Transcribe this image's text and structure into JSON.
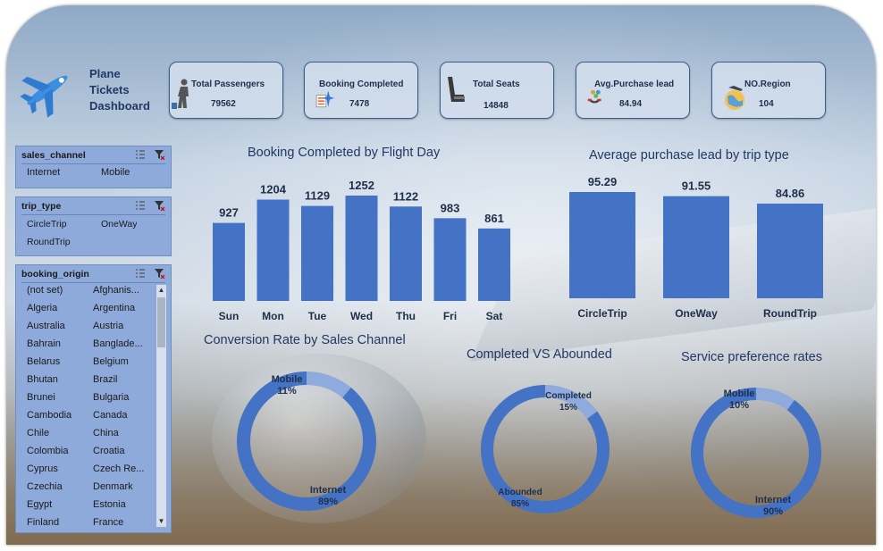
{
  "app": {
    "title_lines": [
      "Plane",
      "Tickets",
      "Dashboard"
    ]
  },
  "kpis": [
    {
      "label": "Total Passengers",
      "value": "79562",
      "icon": "passenger-icon"
    },
    {
      "label": "Booking Completed",
      "value": "7478",
      "icon": "booking-icon"
    },
    {
      "label": "Total Seats",
      "value": "14848",
      "icon": "seat-icon"
    },
    {
      "label": "Avg.Purchase lead",
      "value": "84.94",
      "icon": "purchase-lead-icon"
    },
    {
      "label": "NO.Region",
      "value": "104",
      "icon": "region-icon"
    }
  ],
  "slicers": {
    "sales_channel": {
      "title": "sales_channel",
      "items": [
        "Internet",
        "Mobile"
      ]
    },
    "trip_type": {
      "title": "trip_type",
      "items": [
        "CircleTrip",
        "OneWay",
        "RoundTrip"
      ]
    },
    "booking_origin": {
      "title": "booking_origin",
      "items": [
        "(not set)",
        "Afghanis...",
        "Algeria",
        "Argentina",
        "Australia",
        "Austria",
        "Bahrain",
        "Banglade...",
        "Belarus",
        "Belgium",
        "Bhutan",
        "Brazil",
        "Brunei",
        "Bulgaria",
        "Cambodia",
        "Canada",
        "Chile",
        "China",
        "Colombia",
        "Croatia",
        "Cyprus",
        "Czech Re...",
        "Czechia",
        "Denmark",
        "Egypt",
        "Estonia",
        "Finland",
        "France"
      ]
    }
  },
  "chart_data": [
    {
      "type": "bar",
      "title": "Booking Completed by Flight Day",
      "categories": [
        "Sun",
        "Mon",
        "Tue",
        "Wed",
        "Thu",
        "Fri",
        "Sat"
      ],
      "values": [
        927,
        1204,
        1129,
        1252,
        1122,
        983,
        861
      ],
      "color": "#4472c4"
    },
    {
      "type": "bar",
      "title": "Average purchase lead by trip type",
      "categories": [
        "CircleTrip",
        "OneWay",
        "RoundTrip"
      ],
      "values": [
        95.29,
        91.55,
        84.86
      ],
      "color": "#4472c4"
    },
    {
      "type": "pie",
      "title": "Conversion Rate by Sales Channel",
      "labels": [
        "Mobile",
        "Internet"
      ],
      "values": [
        11,
        89
      ],
      "percent_labels": [
        "11%",
        "89%"
      ],
      "colors": [
        "#8faadc",
        "#4472c4"
      ]
    },
    {
      "type": "pie",
      "title": "Completed VS Abounded",
      "labels": [
        "Completed",
        "Abounded"
      ],
      "values": [
        15,
        85
      ],
      "percent_labels": [
        "15%",
        "85%"
      ],
      "colors": [
        "#8faadc",
        "#4472c4"
      ]
    },
    {
      "type": "pie",
      "title": "Service preference rates",
      "labels": [
        "Mobile",
        "Internet"
      ],
      "values": [
        10,
        90
      ],
      "percent_labels": [
        "10%",
        "90%"
      ],
      "colors": [
        "#8faadc",
        "#4472c4"
      ]
    }
  ]
}
